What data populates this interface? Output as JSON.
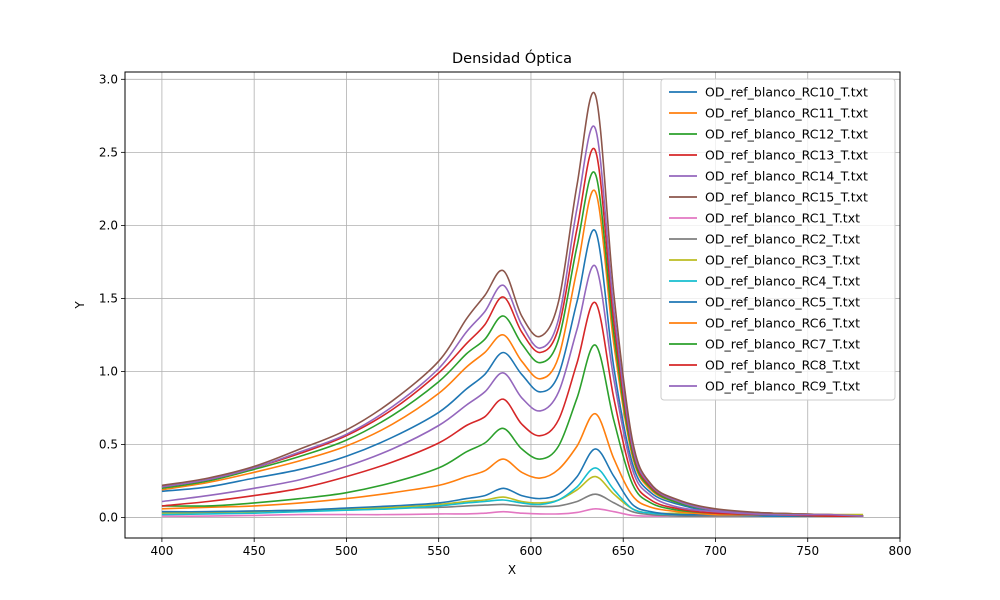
{
  "chart_data": {
    "type": "line",
    "title": "Densidad Óptica",
    "xlabel": "X",
    "ylabel": "Y",
    "xlim": [
      380,
      800
    ],
    "ylim": [
      -0.14,
      3.05
    ],
    "xticks": [
      "400",
      "450",
      "500",
      "550",
      "600",
      "650",
      "700",
      "750",
      "800"
    ],
    "yticks": [
      "0.0",
      "0.5",
      "1.0",
      "1.5",
      "2.0",
      "2.5",
      "3.0"
    ],
    "grid": true,
    "legend_position": "top-right",
    "x": [
      400,
      425,
      450,
      475,
      500,
      525,
      550,
      565,
      575,
      585,
      595,
      605,
      615,
      625,
      635,
      645,
      655,
      665,
      680,
      700,
      730,
      760,
      780
    ],
    "series": [
      {
        "name": "OD_ref_blanco_RC10_T.txt",
        "color": "#1f77b4",
        "values": [
          0.18,
          0.21,
          0.27,
          0.33,
          0.42,
          0.55,
          0.72,
          0.88,
          0.98,
          1.13,
          0.98,
          0.86,
          0.98,
          1.48,
          1.96,
          1.02,
          0.37,
          0.17,
          0.09,
          0.04,
          0.02,
          0.01,
          0.01
        ]
      },
      {
        "name": "OD_ref_blanco_RC11_T.txt",
        "color": "#ff7f0e",
        "values": [
          0.19,
          0.24,
          0.31,
          0.39,
          0.49,
          0.64,
          0.85,
          1.03,
          1.13,
          1.25,
          1.07,
          0.95,
          1.1,
          1.7,
          2.23,
          1.18,
          0.42,
          0.19,
          0.1,
          0.05,
          0.03,
          0.02,
          0.01
        ]
      },
      {
        "name": "OD_ref_blanco_RC12_T.txt",
        "color": "#2ca02c",
        "values": [
          0.2,
          0.25,
          0.33,
          0.42,
          0.53,
          0.7,
          0.93,
          1.12,
          1.22,
          1.38,
          1.19,
          1.06,
          1.22,
          1.86,
          2.35,
          1.25,
          0.44,
          0.2,
          0.1,
          0.05,
          0.03,
          0.02,
          0.01
        ]
      },
      {
        "name": "OD_ref_blanco_RC13_T.txt",
        "color": "#d62728",
        "values": [
          0.21,
          0.26,
          0.34,
          0.44,
          0.56,
          0.74,
          0.99,
          1.19,
          1.32,
          1.51,
          1.27,
          1.13,
          1.3,
          1.98,
          2.51,
          1.33,
          0.47,
          0.21,
          0.11,
          0.05,
          0.03,
          0.02,
          0.01
        ]
      },
      {
        "name": "OD_ref_blanco_RC14_T.txt",
        "color": "#9467bd",
        "values": [
          0.21,
          0.26,
          0.34,
          0.45,
          0.57,
          0.76,
          1.02,
          1.27,
          1.41,
          1.59,
          1.32,
          1.16,
          1.36,
          2.12,
          2.66,
          1.41,
          0.49,
          0.22,
          0.11,
          0.05,
          0.03,
          0.02,
          0.01
        ]
      },
      {
        "name": "OD_ref_blanco_RC15_T.txt",
        "color": "#8c564b",
        "values": [
          0.22,
          0.27,
          0.35,
          0.47,
          0.6,
          0.8,
          1.07,
          1.36,
          1.52,
          1.69,
          1.38,
          1.24,
          1.48,
          2.28,
          2.89,
          1.52,
          0.53,
          0.23,
          0.12,
          0.06,
          0.03,
          0.02,
          0.01
        ]
      },
      {
        "name": "OD_ref_blanco_RC1_T.txt",
        "color": "#e377c2",
        "values": [
          0.01,
          0.01,
          0.015,
          0.02,
          0.02,
          0.02,
          0.025,
          0.025,
          0.03,
          0.04,
          0.03,
          0.025,
          0.025,
          0.035,
          0.06,
          0.04,
          0.015,
          0.01,
          0.01,
          0.01,
          0.01,
          0.01,
          0.01
        ]
      },
      {
        "name": "OD_ref_blanco_RC2_T.txt",
        "color": "#7f7f7f",
        "values": [
          0.04,
          0.04,
          0.045,
          0.05,
          0.06,
          0.065,
          0.07,
          0.08,
          0.085,
          0.09,
          0.08,
          0.075,
          0.08,
          0.11,
          0.16,
          0.1,
          0.04,
          0.02,
          0.01,
          0.01,
          0.01,
          0.01,
          0.01
        ]
      },
      {
        "name": "OD_ref_blanco_RC3_T.txt",
        "color": "#bcbd22",
        "values": [
          0.03,
          0.035,
          0.04,
          0.05,
          0.06,
          0.07,
          0.09,
          0.11,
          0.12,
          0.14,
          0.11,
          0.1,
          0.12,
          0.19,
          0.28,
          0.16,
          0.06,
          0.03,
          0.03,
          0.03,
          0.02,
          0.02,
          0.02
        ]
      },
      {
        "name": "OD_ref_blanco_RC4_T.txt",
        "color": "#17becf",
        "values": [
          0.02,
          0.025,
          0.03,
          0.04,
          0.05,
          0.06,
          0.08,
          0.1,
          0.11,
          0.12,
          0.1,
          0.09,
          0.12,
          0.21,
          0.34,
          0.19,
          0.06,
          0.03,
          0.02,
          0.02,
          0.01,
          0.01,
          0.01
        ]
      },
      {
        "name": "OD_ref_blanco_RC5_T.txt",
        "color": "#1f77b4",
        "values": [
          0.04,
          0.04,
          0.045,
          0.05,
          0.065,
          0.08,
          0.1,
          0.13,
          0.15,
          0.2,
          0.15,
          0.13,
          0.16,
          0.28,
          0.47,
          0.28,
          0.09,
          0.04,
          0.02,
          0.02,
          0.01,
          0.01,
          0.01
        ]
      },
      {
        "name": "OD_ref_blanco_RC6_T.txt",
        "color": "#ff7f0e",
        "values": [
          0.06,
          0.07,
          0.08,
          0.1,
          0.13,
          0.17,
          0.22,
          0.28,
          0.32,
          0.4,
          0.31,
          0.27,
          0.33,
          0.49,
          0.71,
          0.4,
          0.15,
          0.07,
          0.04,
          0.02,
          0.02,
          0.01,
          0.01
        ]
      },
      {
        "name": "OD_ref_blanco_RC7_T.txt",
        "color": "#2ca02c",
        "values": [
          0.08,
          0.08,
          0.1,
          0.13,
          0.17,
          0.24,
          0.34,
          0.45,
          0.51,
          0.61,
          0.47,
          0.4,
          0.49,
          0.82,
          1.18,
          0.66,
          0.23,
          0.1,
          0.05,
          0.03,
          0.02,
          0.01,
          0.01
        ]
      },
      {
        "name": "OD_ref_blanco_RC8_T.txt",
        "color": "#d62728",
        "values": [
          0.08,
          0.11,
          0.15,
          0.2,
          0.28,
          0.38,
          0.51,
          0.63,
          0.69,
          0.81,
          0.64,
          0.56,
          0.67,
          1.06,
          1.47,
          0.81,
          0.28,
          0.12,
          0.06,
          0.03,
          0.02,
          0.01,
          0.01
        ]
      },
      {
        "name": "OD_ref_blanco_RC9_T.txt",
        "color": "#9467bd",
        "values": [
          0.11,
          0.15,
          0.2,
          0.26,
          0.35,
          0.47,
          0.63,
          0.77,
          0.86,
          0.99,
          0.82,
          0.73,
          0.86,
          1.29,
          1.72,
          0.94,
          0.33,
          0.15,
          0.07,
          0.04,
          0.02,
          0.02,
          0.01
        ]
      }
    ]
  }
}
